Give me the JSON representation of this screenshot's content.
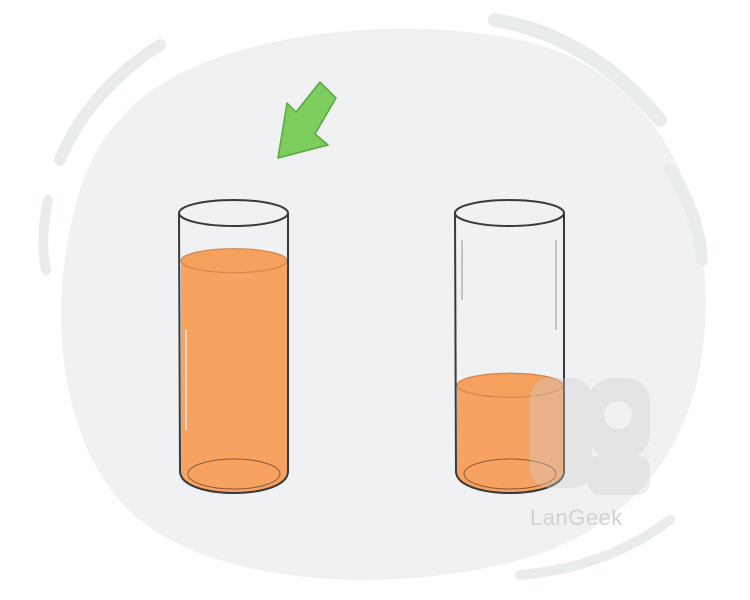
{
  "illustration": {
    "arrow_color": "#7ccd5e",
    "liquid_color": "#f8a261",
    "background_blob_color": "#eff1f2",
    "left_glass": {
      "fill_level": 0.82,
      "highlighted": true
    },
    "right_glass": {
      "fill_level": 0.35,
      "highlighted": false
    }
  },
  "watermark": {
    "brand": "LanGeek"
  }
}
